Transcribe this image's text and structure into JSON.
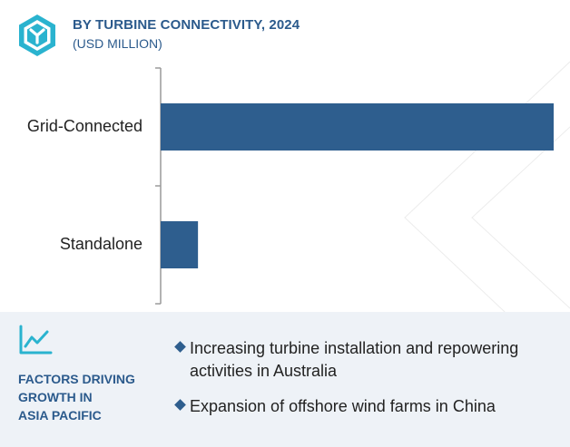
{
  "header": {
    "title": "BY TURBINE CONNECTIVITY, 2024",
    "subtitle": "(USD MILLION)",
    "logo_icon": "hexagon-y-logo-icon"
  },
  "chart_data": {
    "type": "bar",
    "orientation": "horizontal",
    "categories": [
      "Grid-Connected",
      "Standalone"
    ],
    "values": [
      100,
      9.5
    ],
    "title": "BY TURBINE CONNECTIVITY, 2024",
    "subtitle": "(USD MILLION)",
    "xlabel": "",
    "ylabel": "",
    "xlim": [
      0,
      100
    ],
    "grid": false,
    "legend": "none",
    "bar_color": "#2e5e8e",
    "axis_color": "#9a9a9a"
  },
  "factors": {
    "icon": "line-chart-icon",
    "title": "FACTORS DRIVING\nGROWTH IN\nASIA PACIFIC",
    "items": [
      "Increasing turbine installation and repowering activities in Australia",
      "Expansion of offshore wind farms in China"
    ]
  },
  "colors": {
    "accent": "#2b5a8c",
    "bar": "#2e5e8e",
    "panel_bg": "#eef2f7",
    "logo_teal": "#2ab3cf"
  }
}
